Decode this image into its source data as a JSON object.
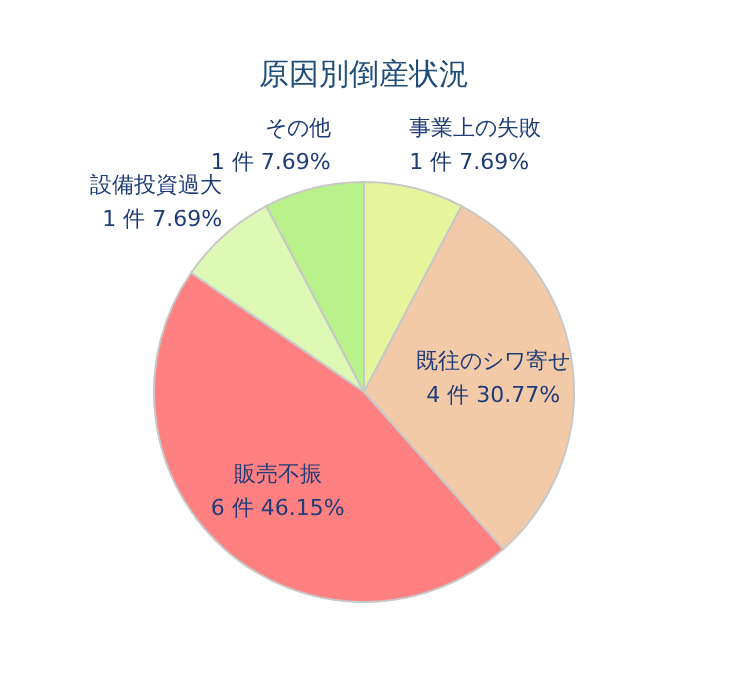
{
  "chart_data": {
    "type": "pie",
    "title": "原因別倒産状況",
    "categories": [
      "事業上の失敗",
      "既往のシワ寄せ",
      "販売不振",
      "設備投資過大",
      "その他"
    ],
    "values": [
      1,
      4,
      6,
      1,
      1
    ],
    "value_labels": [
      "1 件 7.69%",
      "4 件 30.77%",
      "6 件 46.15%",
      "1 件 7.69%",
      "1 件 7.69%"
    ],
    "colors": [
      "#e6f49c",
      "#f2caa8",
      "#ff8080",
      "#dcf8b4",
      "#b9f28a"
    ]
  }
}
